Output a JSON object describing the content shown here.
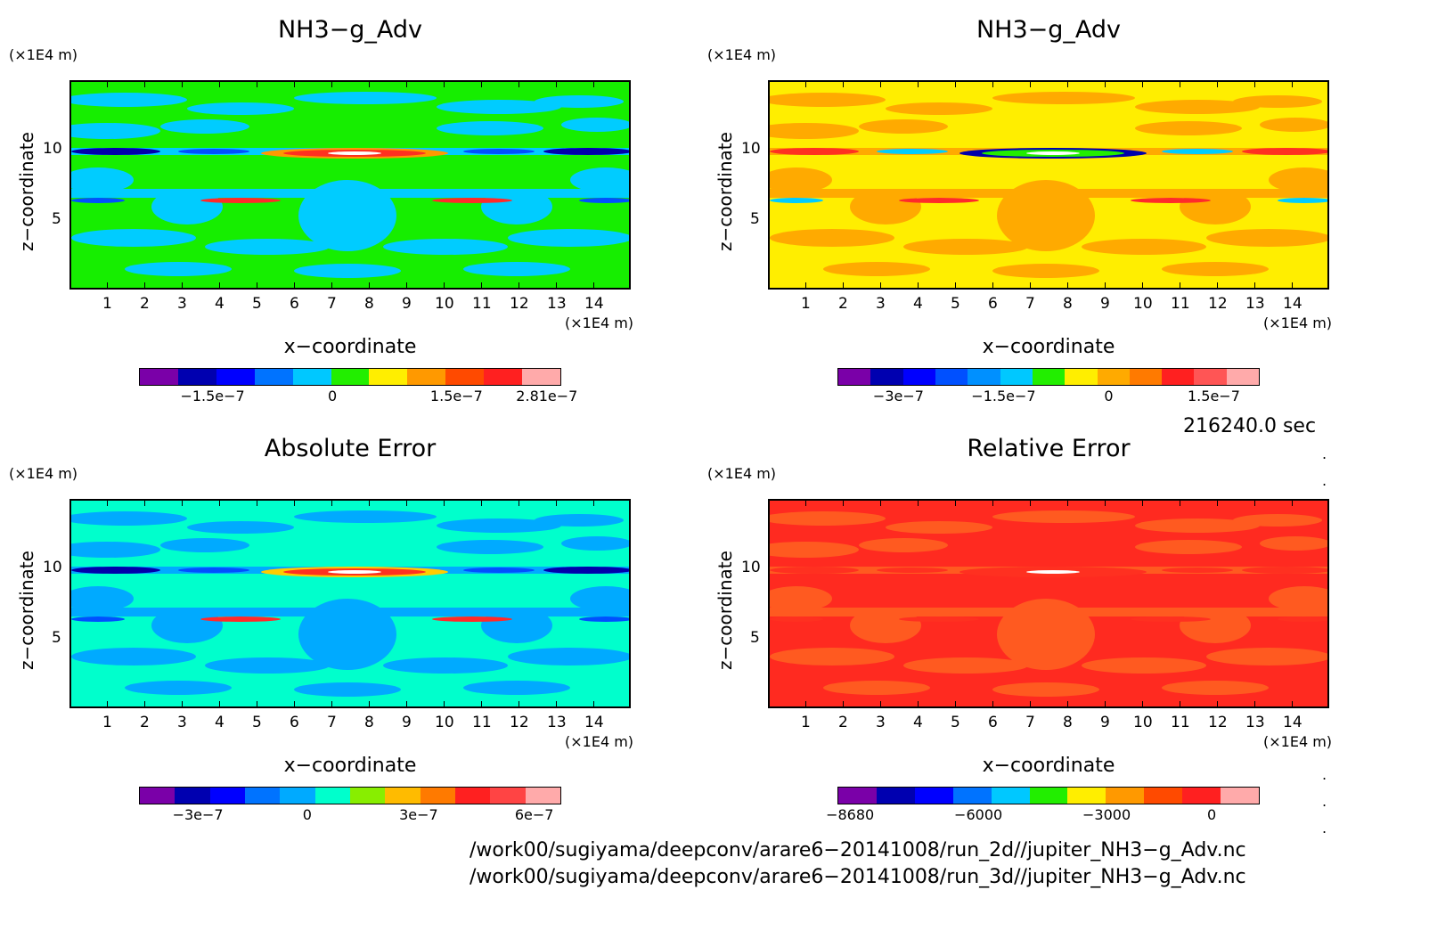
{
  "panels": [
    {
      "title": "NH3−g_Adv",
      "y_unit": "(×1E4 m)",
      "x_unit": "(×1E4 m)",
      "xlabel": "x−coordinate",
      "ylabel": "z−coordinate",
      "bg": "#16ee00",
      "fill2": "#00ccff",
      "band_colors": [
        "#0000aa",
        "#0050ff",
        "#ff9900",
        "#ff3020",
        "#ff2a2a"
      ],
      "colorbar": [
        "#7a00a8",
        "#0000b0",
        "#0000ff",
        "#0073ff",
        "#00c8ff",
        "#22ee00",
        "#ffee00",
        "#ff9900",
        "#ff4a00",
        "#ff2020",
        "#ffaaaa"
      ],
      "colorbar_labels": [
        "−1.5e−7",
        "0",
        "1.5e−7",
        "2.81e−7"
      ]
    },
    {
      "title": "NH3−g_Adv",
      "y_unit": "(×1E4 m)",
      "x_unit": "(×1E4 m)",
      "xlabel": "x−coordinate",
      "ylabel": "z−coordinate",
      "bg": "#ffee00",
      "fill2": "#ffaa00",
      "band_colors": [
        "#ff3020",
        "#00ccff",
        "#0000aa",
        "#22ee00",
        "#ff2a2a"
      ],
      "colorbar": [
        "#7a00a8",
        "#0000b0",
        "#0000ff",
        "#0050ff",
        "#0090ff",
        "#00c8ff",
        "#22ee00",
        "#ffee00",
        "#ffaa00",
        "#ff7a00",
        "#ff2020",
        "#ff5555",
        "#ffaaaa"
      ],
      "colorbar_labels": [
        "−3e−7",
        "−1.5e−7",
        "0",
        "1.5e−7"
      ]
    },
    {
      "title": "Absolute Error",
      "y_unit": "(×1E4 m)",
      "x_unit": "(×1E4 m)",
      "xlabel": "x−coordinate",
      "ylabel": "z−coordinate",
      "bg": "#00ffcc",
      "fill2": "#00aaff",
      "band_colors": [
        "#0000aa",
        "#0050ff",
        "#ffcc00",
        "#ff3020",
        "#ff2a2a"
      ],
      "colorbar": [
        "#7a00a8",
        "#0000b0",
        "#0000ff",
        "#0073ff",
        "#00aaff",
        "#00ffcc",
        "#88ee00",
        "#ffbb00",
        "#ff7a00",
        "#ff2020",
        "#ff4444",
        "#ffaaaa"
      ],
      "colorbar_labels": [
        "−3e−7",
        "0",
        "3e−7",
        "6e−7"
      ]
    },
    {
      "title": "Relative Error",
      "y_unit": "(×1E4 m)",
      "x_unit": "(×1E4 m)",
      "xlabel": "x−coordinate",
      "ylabel": "z−coordinate",
      "bg": "#ff2a20",
      "fill2": "#ff5a20",
      "band_colors": [
        "#ff3020",
        "#ff3020",
        "#ff3020",
        "#ff3020",
        "#ff3020"
      ],
      "colorbar": [
        "#7a00a8",
        "#0000b0",
        "#0000ff",
        "#0073ff",
        "#00c8ff",
        "#22ee00",
        "#ffee00",
        "#ff9900",
        "#ff4a00",
        "#ff2020",
        "#ffaaaa"
      ],
      "colorbar_labels": [
        "−8680",
        "−6000",
        "−3000",
        "0"
      ]
    }
  ],
  "x_ticks": [
    "1",
    "2",
    "3",
    "4",
    "5",
    "6",
    "7",
    "8",
    "9",
    "10",
    "11",
    "12",
    "13",
    "14"
  ],
  "y_ticks": [
    "5",
    "10"
  ],
  "timestamp": "216240.0 sec",
  "paths": [
    "/work00/sugiyama/deepconv/arare6−20141008/run_2d//jupiter_NH3−g_Adv.nc",
    "/work00/sugiyama/deepconv/arare6−20141008/run_3d//jupiter_NH3−g_Adv.nc"
  ],
  "chart_data": [
    {
      "type": "heatmap",
      "title": "NH3−g_Adv",
      "xlabel": "x−coordinate",
      "ylabel": "z−coordinate",
      "xlim": [
        0,
        15
      ],
      "ylim": [
        0,
        15
      ],
      "colorbar_ticks": [
        -1.5e-07,
        0,
        1.5e-07,
        2.81e-07
      ]
    },
    {
      "type": "heatmap",
      "title": "NH3−g_Adv",
      "xlabel": "x−coordinate",
      "ylabel": "z−coordinate",
      "xlim": [
        0,
        15
      ],
      "ylim": [
        0,
        15
      ],
      "colorbar_ticks": [
        -3e-07,
        -1.5e-07,
        0,
        1.5e-07
      ]
    },
    {
      "type": "heatmap",
      "title": "Absolute Error",
      "xlabel": "x−coordinate",
      "ylabel": "z−coordinate",
      "xlim": [
        0,
        15
      ],
      "ylim": [
        0,
        15
      ],
      "colorbar_ticks": [
        -3e-07,
        0,
        3e-07,
        6e-07
      ]
    },
    {
      "type": "heatmap",
      "title": "Relative Error",
      "xlabel": "x−coordinate",
      "ylabel": "z−coordinate",
      "xlim": [
        0,
        15
      ],
      "ylim": [
        0,
        15
      ],
      "colorbar_ticks": [
        -8680,
        -6000,
        -3000,
        0
      ]
    }
  ]
}
